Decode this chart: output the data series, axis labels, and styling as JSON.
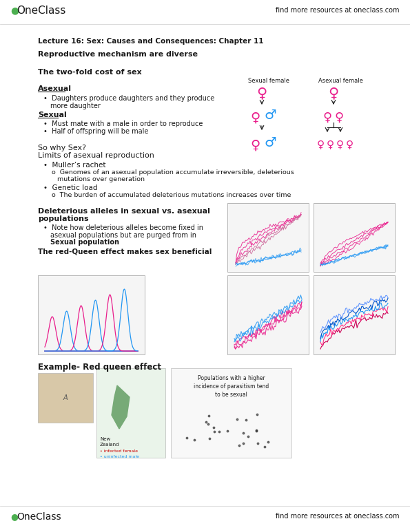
{
  "bg_color": "#ffffff",
  "header_text": "OneClass",
  "header_right": "find more resources at oneclass.com",
  "footer_text": "OneClass",
  "footer_right": "find more resources at oneclass.com",
  "lecture_title": "Lecture 16: Sex: Causes and Consequences: Chapter 11",
  "section1_bold": "Reproductive mechanism are diverse",
  "section2_bold": "The two-fold cost of sex",
  "asexual_label": "Asexual",
  "asexual_bullet": "Daughters produce daughters and they produce\nmore daughter",
  "sexual_label": "Sexual",
  "sexual_bullets": [
    "Must mate with a male in order to reproduce",
    "Half of offspring will be male"
  ],
  "sowhy_text1": "So why Sex?",
  "sowhy_text2": "Limits of asexual reproduction",
  "muller_bullet": "Muller’s rachet",
  "muller_sub1": "Genomes of an asexual population accumulate irreversible, deleterious",
  "muller_sub2": "mutations over generation",
  "genetic_bullet": "Genetic load",
  "genetic_sub": "The burden of accumulated deleterious mutations increases over time",
  "deleterious_bold1": "Deleterious alleles in sexual vs. asexual",
  "deleterious_bold2": "populations",
  "deleterious_bullet1": "•  Note how deleterious alleles become fixed in",
  "deleterious_bullet2": "asexual populations but are purged from in",
  "deleterious_bullet3": "Sexual population",
  "redqueen_text": "The red-Queen effect makes sex beneficial",
  "example_bold": "Example- Red queen effect",
  "sexual_female_label": "Sexual female",
  "asexual_female_label": "Asexual female",
  "pink_color": "#e91e8c",
  "blue_color": "#2196f3",
  "green_color": "#4caf50",
  "dark_color": "#1a1a1a",
  "gray_color": "#888888"
}
